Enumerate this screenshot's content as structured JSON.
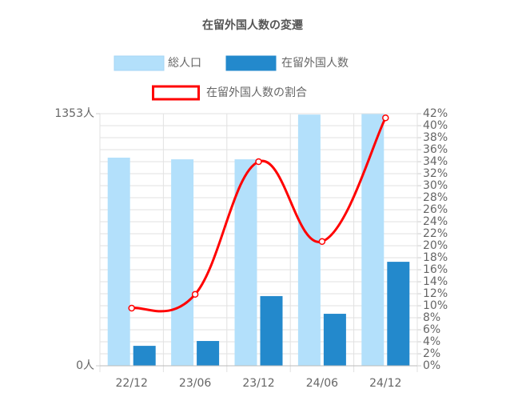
{
  "chart_data": {
    "type": "bar-line",
    "title": "在留外国人数の変遷",
    "categories": [
      "22/12",
      "23/06",
      "23/12",
      "24/06",
      "24/12"
    ],
    "series": [
      {
        "name": "総人口",
        "type": "bar",
        "color": "#b3e0fb",
        "values": [
          1117,
          1108,
          1108,
          1348,
          1351
        ]
      },
      {
        "name": "在留外国人数",
        "type": "bar",
        "color": "#2389cc",
        "values": [
          107,
          133,
          374,
          279,
          558
        ]
      },
      {
        "name": "在留外国人数の割合",
        "type": "line",
        "axis": "y2",
        "color": "#ff0000",
        "values": [
          9.6,
          11.9,
          34.0,
          20.7,
          41.3
        ]
      }
    ],
    "ylim": [
      0,
      1353
    ],
    "yticks": [
      {
        "value": 0,
        "label": "0人"
      },
      {
        "value": 1353,
        "label": "1353人"
      }
    ],
    "y2lim": [
      0,
      42
    ],
    "y2ticks": [
      {
        "value": 0,
        "label": "0%"
      },
      {
        "value": 2,
        "label": "2%"
      },
      {
        "value": 4,
        "label": "4%"
      },
      {
        "value": 6,
        "label": "6%"
      },
      {
        "value": 8,
        "label": "8%"
      },
      {
        "value": 10,
        "label": "10%"
      },
      {
        "value": 12,
        "label": "12%"
      },
      {
        "value": 14,
        "label": "14%"
      },
      {
        "value": 16,
        "label": "16%"
      },
      {
        "value": 18,
        "label": "18%"
      },
      {
        "value": 20,
        "label": "20%"
      },
      {
        "value": 22,
        "label": "22%"
      },
      {
        "value": 24,
        "label": "24%"
      },
      {
        "value": 26,
        "label": "26%"
      },
      {
        "value": 28,
        "label": "28%"
      },
      {
        "value": 30,
        "label": "30%"
      },
      {
        "value": 32,
        "label": "32%"
      },
      {
        "value": 34,
        "label": "34%"
      },
      {
        "value": 36,
        "label": "36%"
      },
      {
        "value": 38,
        "label": "38%"
      },
      {
        "value": 40,
        "label": "40%"
      },
      {
        "value": 42,
        "label": "42%"
      }
    ],
    "grid": true
  }
}
